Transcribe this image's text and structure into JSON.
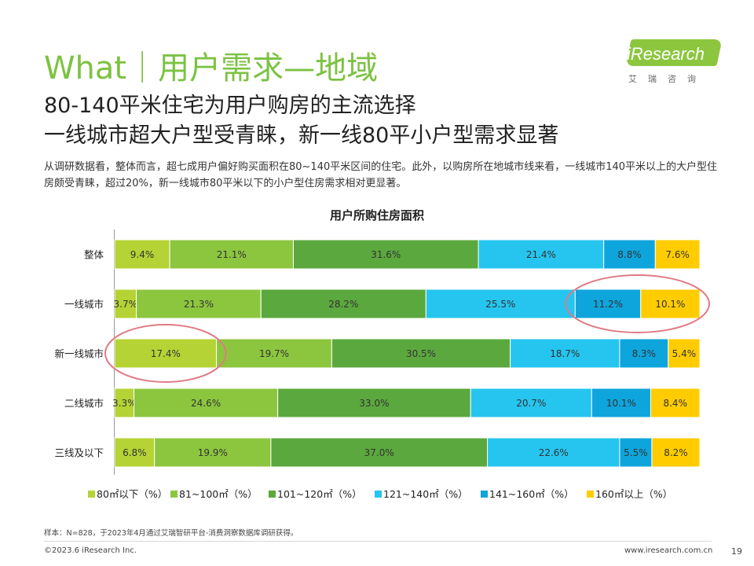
{
  "header": {
    "title": "What｜用户需求—地域",
    "subtitle_line1": "80-140平米住宅为用户购房的主流选择",
    "subtitle_line2": "一线城市超大户型受青睐，新一线80平小户型需求显著",
    "description": "从调研数据看，整体而言，超七成用户偏好购买面积在80~140平米区间的住宅。此外，以购房所在地城市线来看，一线城市140平米以上的大户型住房颇受青睐，超过20%，新一线城市80平米以下的小户型住房需求相对更显著。"
  },
  "logo": {
    "wordmark": "iResearch",
    "subtitle": "艾瑞咨询"
  },
  "chart_data": {
    "type": "bar",
    "orientation": "horizontal",
    "stacked": true,
    "title": "用户所购住房面积",
    "categories": [
      "整体",
      "一线城市",
      "新一线城市",
      "二线城市",
      "三线及以下"
    ],
    "series": [
      {
        "name": "80㎡以下（%）",
        "color": "#b5d334",
        "values": [
          9.4,
          3.7,
          17.4,
          3.3,
          6.8
        ],
        "labels": [
          "9.4%",
          "3.7%",
          "17.4%",
          "3.3%",
          "6.8%"
        ]
      },
      {
        "name": "81~100㎡（%）",
        "color": "#8cc63f",
        "values": [
          21.1,
          21.3,
          19.7,
          24.6,
          19.9
        ],
        "labels": [
          "21.1%",
          "21.3%",
          "19.7%",
          "24.6%",
          "19.9%"
        ]
      },
      {
        "name": "101~120㎡（%）",
        "color": "#5ba83e",
        "values": [
          31.6,
          28.2,
          30.5,
          33.0,
          37.0
        ],
        "labels": [
          "31.6%",
          "28.2%",
          "30.5%",
          "33.0%",
          "37.0%"
        ]
      },
      {
        "name": "121~140㎡（%）",
        "color": "#25c5ef",
        "values": [
          21.4,
          25.5,
          18.7,
          20.7,
          22.6
        ],
        "labels": [
          "21.4%",
          "25.5%",
          "18.7%",
          "20.7%",
          "22.6%"
        ]
      },
      {
        "name": "141~160㎡（%）",
        "color": "#0ea5dd",
        "values": [
          8.8,
          11.2,
          8.3,
          10.1,
          5.5
        ],
        "labels": [
          "8.8%",
          "11.2%",
          "8.3%",
          "10.1%",
          "5.5%"
        ]
      },
      {
        "name": "160㎡以上（%）",
        "color": "#ffcc00",
        "values": [
          7.6,
          10.1,
          5.4,
          8.4,
          8.2
        ],
        "labels": [
          "7.6%",
          "10.1%",
          "5.4%",
          "8.4%",
          "8.2%"
        ]
      }
    ],
    "legend_position": "bottom",
    "grid": false,
    "highlights": [
      {
        "category": "一线城市",
        "series": [
          "141~160㎡（%）",
          "160㎡以上（%）"
        ]
      },
      {
        "category": "新一线城市",
        "series": [
          "80㎡以下（%）"
        ]
      }
    ],
    "highlight_color": "#e07a85"
  },
  "footer": {
    "source_note": "样本：N=828，于2023年4月通过艾瑞智研平台-消费洞察数据库调研获得。",
    "copyright": "©2023.6 iResearch Inc.",
    "url": "www.iresearch.com.cn",
    "page_number": "19"
  }
}
